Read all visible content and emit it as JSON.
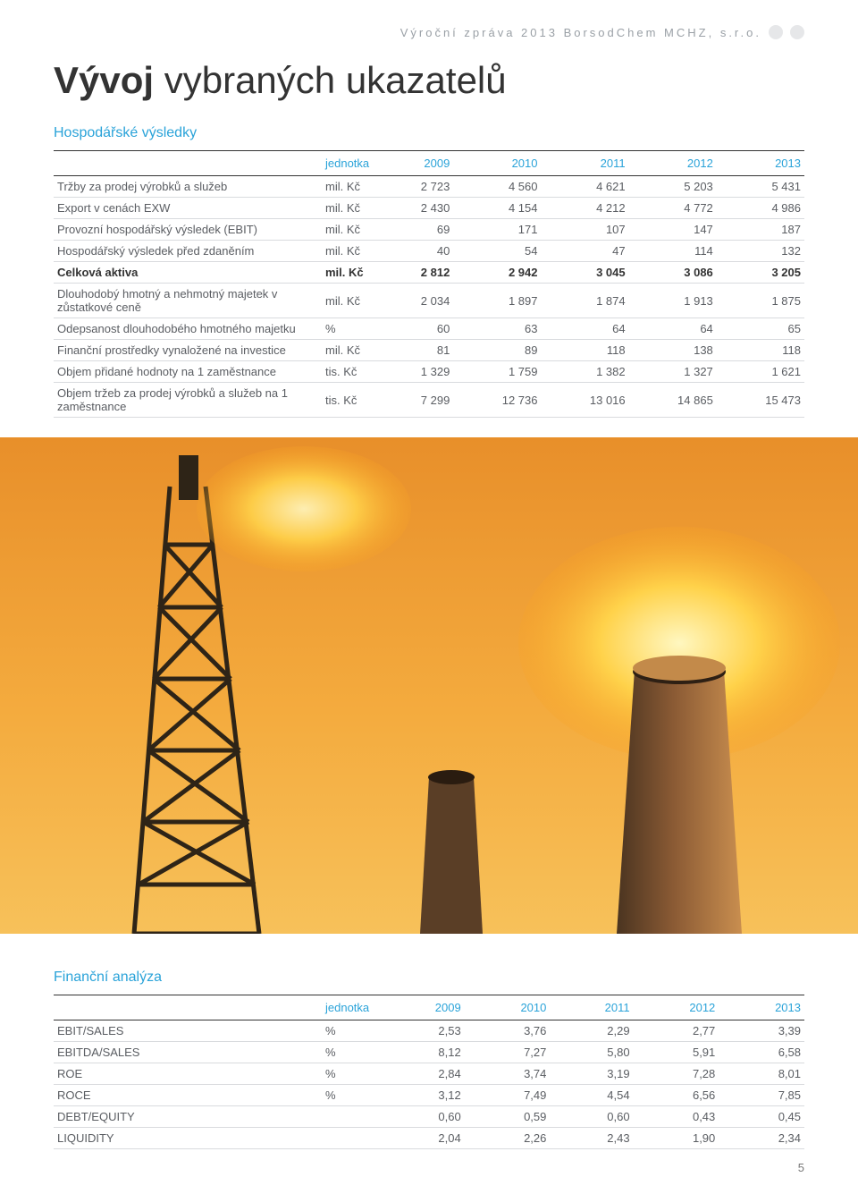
{
  "header": {
    "breadcrumb": "Výroční zpráva 2013 BorsodChem MCHZ, s.r.o."
  },
  "title": {
    "bold": "Vývoj",
    "rest": " vybraných ukazatelů"
  },
  "table1": {
    "label": "Hospodářské výsledky",
    "columns": [
      "",
      "jednotka",
      "2009",
      "2010",
      "2011",
      "2012",
      "2013"
    ],
    "rows": [
      {
        "bold": false,
        "cells": [
          "Tržby za prodej výrobků a služeb",
          "mil. Kč",
          "2 723",
          "4 560",
          "4 621",
          "5 203",
          "5 431"
        ]
      },
      {
        "bold": false,
        "cells": [
          "Export v cenách EXW",
          "mil. Kč",
          "2 430",
          "4 154",
          "4 212",
          "4 772",
          "4 986"
        ]
      },
      {
        "bold": false,
        "cells": [
          "Provozní hospodářský výsledek (EBIT)",
          "mil. Kč",
          "69",
          "171",
          "107",
          "147",
          "187"
        ]
      },
      {
        "bold": false,
        "cells": [
          "Hospodářský výsledek před zdaněním",
          "mil. Kč",
          "40",
          "54",
          "47",
          "114",
          "132"
        ]
      },
      {
        "bold": true,
        "cells": [
          "Celková aktiva",
          "mil. Kč",
          "2 812",
          "2 942",
          "3 045",
          "3 086",
          "3 205"
        ]
      },
      {
        "bold": false,
        "cells": [
          "Dlouhodobý hmotný a nehmotný majetek v zůstatkové ceně",
          "mil. Kč",
          "2 034",
          "1 897",
          "1 874",
          "1 913",
          "1 875"
        ]
      },
      {
        "bold": false,
        "cells": [
          "Odepsanost dlouhodobého hmotného majetku",
          "%",
          "60",
          "63",
          "64",
          "64",
          "65"
        ]
      },
      {
        "bold": false,
        "cells": [
          "Finanční prostředky vynaložené na investice",
          "mil. Kč",
          "81",
          "89",
          "118",
          "138",
          "118"
        ]
      },
      {
        "bold": false,
        "cells": [
          "Objem přidané hodnoty na 1 zaměstnance",
          "tis. Kč",
          "1 329",
          "1 759",
          "1 382",
          "1 327",
          "1 621"
        ]
      },
      {
        "bold": false,
        "cells": [
          "Objem tržeb za prodej výrobků a služeb na 1 zaměstnance",
          "tis. Kč",
          "7 299",
          "12 736",
          "13 016",
          "14 865",
          "15 473"
        ]
      }
    ]
  },
  "table2": {
    "label": "Finanční analýza",
    "columns": [
      "",
      "jednotka",
      "2009",
      "2010",
      "2011",
      "2012",
      "2013"
    ],
    "rows": [
      {
        "bold": false,
        "cells": [
          "EBIT/SALES",
          "%",
          "2,53",
          "3,76",
          "2,29",
          "2,77",
          "3,39"
        ]
      },
      {
        "bold": false,
        "cells": [
          "EBITDA/SALES",
          "%",
          "8,12",
          "7,27",
          "5,80",
          "5,91",
          "6,58"
        ]
      },
      {
        "bold": false,
        "cells": [
          "ROE",
          "%",
          "2,84",
          "3,74",
          "3,19",
          "7,28",
          "8,01"
        ]
      },
      {
        "bold": false,
        "cells": [
          "ROCE",
          "%",
          "3,12",
          "7,49",
          "4,54",
          "6,56",
          "7,85"
        ]
      },
      {
        "bold": false,
        "cells": [
          "DEBT/EQUITY",
          "",
          "0,60",
          "0,59",
          "0,60",
          "0,43",
          "0,45"
        ]
      },
      {
        "bold": false,
        "cells": [
          "LIQUIDITY",
          "",
          "2,04",
          "2,26",
          "2,43",
          "1,90",
          "2,34"
        ]
      }
    ]
  },
  "pageNumber": "5",
  "image": {
    "sky_gradient_top": "#e88f2a",
    "sky_gradient_bottom": "#f7c15a",
    "flame_colors": [
      "#fff7c0",
      "#ffd24a",
      "#f79b1e"
    ],
    "tower_color": "#3b2d1f",
    "stack_color": "#6b4a2f",
    "stack_rim": "#c38a4a"
  }
}
